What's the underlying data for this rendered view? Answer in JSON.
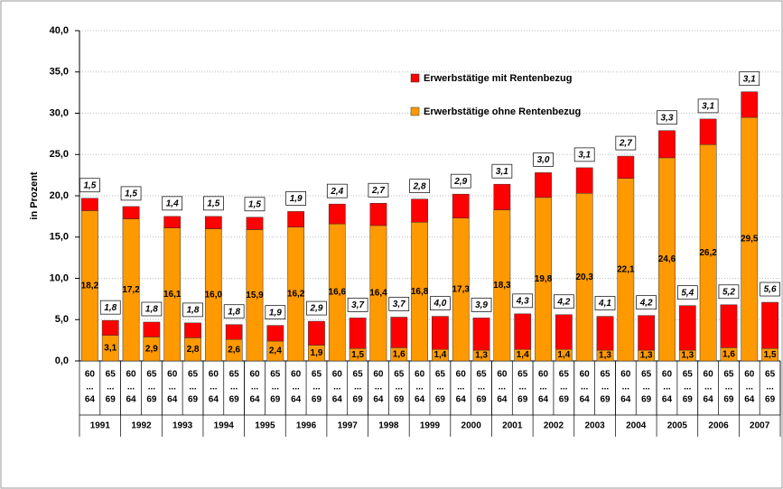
{
  "chart_data": {
    "type": "stacked_bar",
    "y_axis_label": "in Prozent",
    "groups": [
      "1991",
      "1992",
      "1993",
      "1994",
      "1995",
      "1996",
      "1997",
      "1998",
      "1999",
      "2000",
      "2001",
      "2002",
      "2003",
      "2004",
      "2005",
      "2006",
      "2007"
    ],
    "categories": [
      [
        "60",
        "...",
        "64"
      ],
      [
        "65",
        "...",
        "69"
      ],
      [
        "60",
        "...",
        "64"
      ],
      [
        "65",
        "...",
        "69"
      ],
      [
        "60",
        "...",
        "64"
      ],
      [
        "65",
        "...",
        "69"
      ],
      [
        "60",
        "...",
        "64"
      ],
      [
        "65",
        "...",
        "69"
      ],
      [
        "60",
        "...",
        "64"
      ],
      [
        "65",
        "...",
        "69"
      ],
      [
        "60",
        "...",
        "64"
      ],
      [
        "65",
        "...",
        "69"
      ],
      [
        "60",
        "...",
        "64"
      ],
      [
        "65",
        "...",
        "69"
      ],
      [
        "60",
        "...",
        "64"
      ],
      [
        "65",
        "...",
        "69"
      ],
      [
        "60",
        "...",
        "64"
      ],
      [
        "65",
        "...",
        "69"
      ],
      [
        "60",
        "...",
        "64"
      ],
      [
        "65",
        "...",
        "69"
      ],
      [
        "60",
        "...",
        "64"
      ],
      [
        "65",
        "...",
        "69"
      ],
      [
        "60",
        "...",
        "64"
      ],
      [
        "65",
        "...",
        "69"
      ],
      [
        "60",
        "...",
        "64"
      ],
      [
        "65",
        "...",
        "69"
      ],
      [
        "60",
        "...",
        "64"
      ],
      [
        "65",
        "...",
        "69"
      ],
      [
        "60",
        "...",
        "64"
      ],
      [
        "65",
        "...",
        "69"
      ],
      [
        "60",
        "...",
        "64"
      ],
      [
        "65",
        "...",
        "69"
      ],
      [
        "60",
        "...",
        "64"
      ],
      [
        "65",
        "...",
        "69"
      ]
    ],
    "series": [
      {
        "name": "Erwerbstätige ohne Rentenbezug",
        "color": "#ff9900",
        "values": [
          18.2,
          3.1,
          17.2,
          2.9,
          16.1,
          2.8,
          16.0,
          2.6,
          15.9,
          2.4,
          16.2,
          1.9,
          16.6,
          1.5,
          16.4,
          1.6,
          16.8,
          1.4,
          17.3,
          1.3,
          18.3,
          1.4,
          19.8,
          1.4,
          20.3,
          1.3,
          22.1,
          1.3,
          24.6,
          1.3,
          26.2,
          1.6,
          29.5,
          1.5
        ],
        "value_labels": [
          "18,2",
          "3,1",
          "17,2",
          "2,9",
          "16,1",
          "2,8",
          "16,0",
          "2,6",
          "15,9",
          "2,4",
          "16,2",
          "1,9",
          "16,6",
          "1,5",
          "16,4",
          "1,6",
          "16,8",
          "1,4",
          "17,3",
          "1,3",
          "18,3",
          "1,4",
          "19,8",
          "1,4",
          "20,3",
          "1,3",
          "22,1",
          "1,3",
          "24,6",
          "1,3",
          "26,2",
          "1,6",
          "29,5",
          "1,5"
        ]
      },
      {
        "name": "Erwerbstätige mit Rentenbezug",
        "color": "#ff0000",
        "values": [
          1.5,
          1.8,
          1.5,
          1.8,
          1.4,
          1.8,
          1.5,
          1.8,
          1.5,
          1.9,
          1.9,
          2.9,
          2.4,
          3.7,
          2.7,
          3.7,
          2.8,
          4.0,
          2.9,
          3.9,
          3.1,
          4.3,
          3.0,
          4.2,
          3.1,
          4.1,
          2.7,
          4.2,
          3.3,
          5.4,
          3.1,
          5.2,
          3.1,
          5.6
        ],
        "value_labels": [
          "1,5",
          "1,8",
          "1,5",
          "1,8",
          "1,4",
          "1,8",
          "1,5",
          "1,8",
          "1,5",
          "1,9",
          "1,9",
          "2,9",
          "2,4",
          "3,7",
          "2,7",
          "3,7",
          "2,8",
          "4,0",
          "2,9",
          "3,9",
          "3,1",
          "4,3",
          "3,0",
          "4,2",
          "3,1",
          "4,1",
          "2,7",
          "4,2",
          "3,3",
          "5,4",
          "3,1",
          "5,2",
          "3,1",
          "5,6"
        ]
      }
    ],
    "ylim": [
      0,
      40
    ],
    "yticks": [
      {
        "value": 0,
        "label": "0,0"
      },
      {
        "value": 5,
        "label": "5,0"
      },
      {
        "value": 10,
        "label": "10,0"
      },
      {
        "value": 15,
        "label": "15,0"
      },
      {
        "value": 20,
        "label": "20,0"
      },
      {
        "value": 25,
        "label": "25,0"
      },
      {
        "value": 30,
        "label": "30,0"
      },
      {
        "value": 35,
        "label": "35,0"
      },
      {
        "value": 40,
        "label": "40,0"
      }
    ],
    "grid": true,
    "legend": "top"
  }
}
